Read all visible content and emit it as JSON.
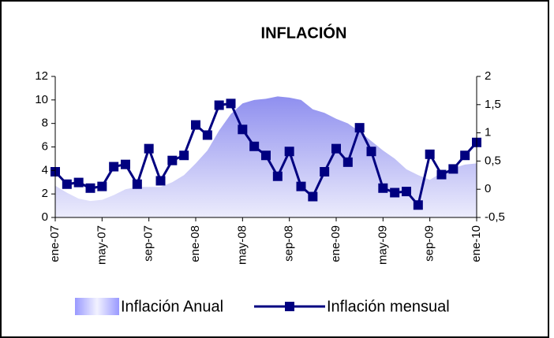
{
  "chart_data": {
    "type": "line",
    "title": "INFLACIÓN",
    "categories": [
      "ene-07",
      null,
      null,
      null,
      "may-07",
      null,
      null,
      null,
      "sep-07",
      null,
      null,
      null,
      "ene-08",
      null,
      null,
      null,
      "may-08",
      null,
      null,
      null,
      "sep-08",
      null,
      null,
      null,
      "ene-09",
      null,
      null,
      null,
      "may-09",
      null,
      null,
      null,
      "sep-09",
      null,
      null,
      null,
      "ene-10"
    ],
    "series": [
      {
        "name": "Inflación Anual",
        "kind": "area",
        "color": "#9999ff",
        "values": [
          2.7,
          2.1,
          1.6,
          1.4,
          1.5,
          1.9,
          2.4,
          2.6,
          2.6,
          2.6,
          3.0,
          3.6,
          4.6,
          5.7,
          7.4,
          8.8,
          9.7,
          10.0,
          10.1,
          10.3,
          10.2,
          10.0,
          9.2,
          8.9,
          8.4,
          8.0,
          7.3,
          6.5,
          5.7,
          5.0,
          4.1,
          3.6,
          3.2,
          3.8,
          4.2,
          4.5,
          4.6
        ]
      },
      {
        "name": "Inflación mensual",
        "kind": "line",
        "axis": "y2",
        "color": "#000080",
        "values": [
          0.31,
          0.09,
          0.12,
          0.02,
          0.05,
          0.4,
          0.44,
          0.09,
          0.72,
          0.15,
          0.51,
          0.6,
          1.14,
          0.96,
          1.49,
          1.52,
          1.06,
          0.76,
          0.6,
          0.23,
          0.67,
          0.05,
          -0.13,
          0.31,
          0.72,
          0.48,
          1.09,
          0.67,
          0.02,
          -0.06,
          -0.04,
          -0.28,
          0.62,
          0.26,
          0.36,
          0.6,
          0.83
        ]
      }
    ],
    "ylim": [
      0,
      12
    ],
    "yticks": [
      0,
      2,
      4,
      6,
      8,
      10,
      12
    ],
    "y2lim": [
      -0.5,
      2
    ],
    "y2ticks": [
      {
        "value": -0.5,
        "label": "-0,5"
      },
      0,
      {
        "value": 0.5,
        "label": "0,5"
      },
      1,
      {
        "value": 1.5,
        "label": "1,5"
      },
      2
    ],
    "legend": "bottom",
    "grid": false
  }
}
